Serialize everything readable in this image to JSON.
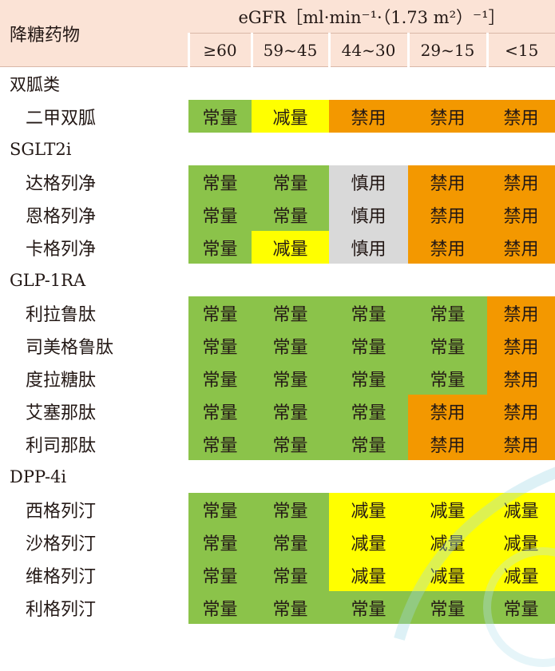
{
  "header": {
    "drug_col": "降糖药物",
    "egfr_title": "eGFR［ml·min⁻¹·（1.73 m²）⁻¹］",
    "ranges": [
      "≥60",
      "59~45",
      "44~30",
      "29~15",
      "<15"
    ]
  },
  "colors": {
    "normal": "#8bc34a",
    "reduce": "#ffff00",
    "forbid": "#f39800",
    "caution": "#d9d9d9",
    "header_bg": "#fbe3d6"
  },
  "groups": [
    {
      "name": "双胍类",
      "drugs": [
        {
          "name": "二甲双胍",
          "cells": [
            "常量",
            "减量",
            "禁用",
            "禁用",
            "禁用"
          ]
        }
      ]
    },
    {
      "name": "SGLT2i",
      "drugs": [
        {
          "name": "达格列净",
          "cells": [
            "常量",
            "常量",
            "慎用",
            "禁用",
            "禁用"
          ]
        },
        {
          "name": "恩格列净",
          "cells": [
            "常量",
            "常量",
            "慎用",
            "禁用",
            "禁用"
          ]
        },
        {
          "name": "卡格列净",
          "cells": [
            "常量",
            "减量",
            "慎用",
            "禁用",
            "禁用"
          ]
        }
      ]
    },
    {
      "name": "GLP-1RA",
      "drugs": [
        {
          "name": "利拉鲁肽",
          "cells": [
            "常量",
            "常量",
            "常量",
            "常量",
            "禁用"
          ]
        },
        {
          "name": "司美格鲁肽",
          "cells": [
            "常量",
            "常量",
            "常量",
            "常量",
            "禁用"
          ]
        },
        {
          "name": "度拉糖肽",
          "cells": [
            "常量",
            "常量",
            "常量",
            "常量",
            "禁用"
          ]
        },
        {
          "name": "艾塞那肽",
          "cells": [
            "常量",
            "常量",
            "常量",
            "禁用",
            "禁用"
          ]
        },
        {
          "name": "利司那肽",
          "cells": [
            "常量",
            "常量",
            "常量",
            "禁用",
            "禁用"
          ]
        }
      ]
    },
    {
      "name": "DPP-4i",
      "drugs": [
        {
          "name": "西格列汀",
          "cells": [
            "常量",
            "常量",
            "减量",
            "减量",
            "减量"
          ]
        },
        {
          "name": "沙格列汀",
          "cells": [
            "常量",
            "常量",
            "减量",
            "减量",
            "减量"
          ]
        },
        {
          "name": "维格列汀",
          "cells": [
            "常量",
            "常量",
            "减量",
            "减量",
            "减量"
          ]
        },
        {
          "name": "利格列汀",
          "cells": [
            "常量",
            "常量",
            "常量",
            "常量",
            "常量"
          ]
        }
      ]
    }
  ]
}
